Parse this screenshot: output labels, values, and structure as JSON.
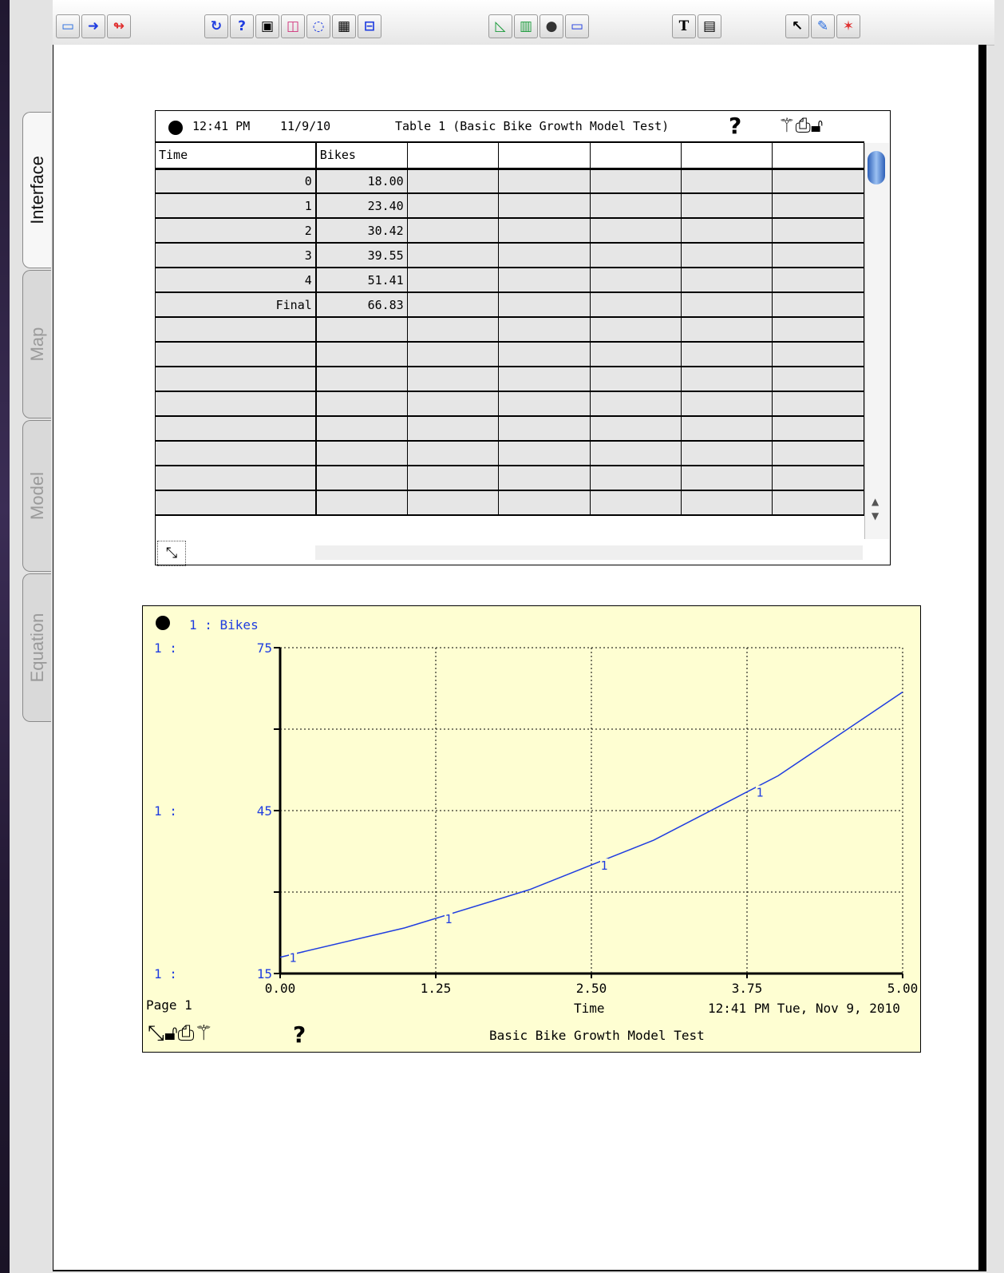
{
  "tabs": {
    "interface": "Interface",
    "map": "Map",
    "model": "Model",
    "equation": "Equation"
  },
  "toolbar_icons": [
    "window-icon",
    "flow-arrow-icon",
    "decision-arrow-icon",
    "loop-icon",
    "help-icon",
    "switch-icon",
    "graph-pad-icon",
    "knob-icon",
    "table-icon",
    "slider-icon",
    "line-graph-icon",
    "numeric-display-icon",
    "sector-icon",
    "button-icon",
    "text-icon",
    "picture-icon",
    "pointer-icon",
    "paintbrush-icon",
    "dynamite-icon"
  ],
  "table": {
    "time": "12:41 PM",
    "date": "11/9/10",
    "title": "Table 1 (Basic Bike Growth Model Test)",
    "help": "?",
    "columns": [
      "Time",
      "Bikes"
    ],
    "rows": [
      {
        "time": "0",
        "bikes": "18.00"
      },
      {
        "time": "1",
        "bikes": "23.40"
      },
      {
        "time": "2",
        "bikes": "30.42"
      },
      {
        "time": "3",
        "bikes": "39.55"
      },
      {
        "time": "4",
        "bikes": "51.41"
      },
      {
        "time": "Final",
        "bikes": "66.83"
      }
    ]
  },
  "graph": {
    "legend": "1 : Bikes",
    "page": "Page 1",
    "timestamp": "12:41 PM  Tue, Nov 9, 2010",
    "model_name": "Basic Bike Growth Model Test",
    "help": "?",
    "line_color": "#1f3de0"
  },
  "chart_data": {
    "type": "line",
    "xlabel": "Time",
    "ylabel": "",
    "xlim": [
      0,
      5
    ],
    "ylim": [
      15,
      75
    ],
    "x_ticks": [
      "0.00",
      "1.25",
      "2.50",
      "3.75",
      "5.00"
    ],
    "y_ticks": [
      "75",
      "45",
      "15"
    ],
    "y_axis_label": "1 :",
    "grid": true,
    "legend_position": "top-left",
    "series": [
      {
        "name": "1 : Bikes",
        "marker_label": "1",
        "x": [
          0,
          1,
          2,
          3,
          4,
          5
        ],
        "values": [
          18.0,
          23.4,
          30.42,
          39.55,
          51.41,
          66.83
        ]
      }
    ]
  }
}
